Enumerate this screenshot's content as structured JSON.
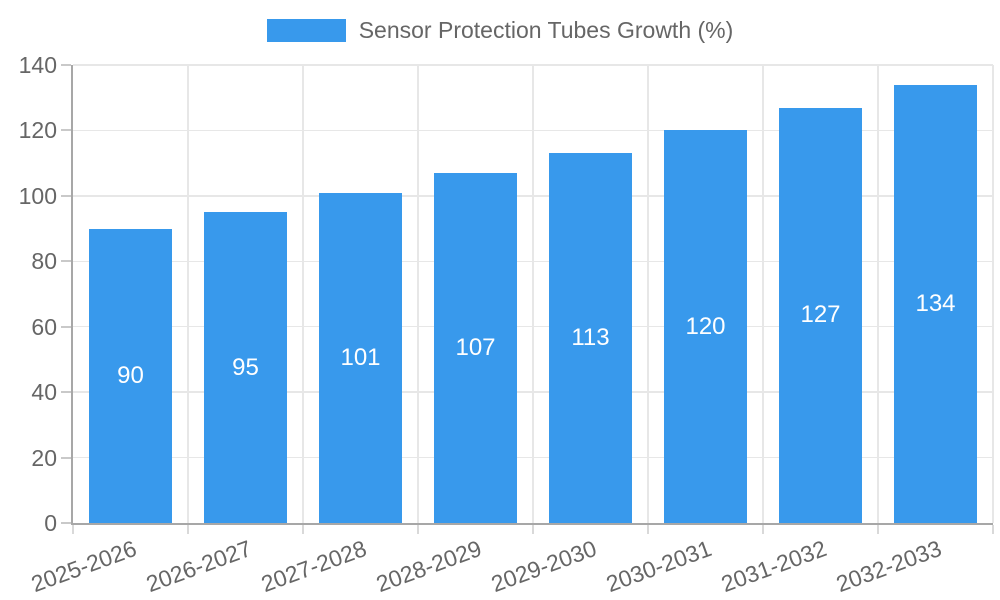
{
  "legend": {
    "label": "Sensor Protection Tubes Growth (%)"
  },
  "chart_data": {
    "type": "bar",
    "title": "Sensor Protection Tubes Growth (%)",
    "categories": [
      "2025-2026",
      "2026-2027",
      "2027-2028",
      "2028-2029",
      "2029-2030",
      "2030-2031",
      "2031-2032",
      "2032-2033"
    ],
    "values": [
      90,
      95,
      101,
      107,
      113,
      120,
      127,
      134
    ],
    "yticks": [
      0,
      20,
      40,
      60,
      80,
      100,
      120,
      140
    ],
    "ylim": [
      0,
      140
    ],
    "xlabel": "",
    "ylabel": "",
    "grid": true,
    "legend_position": "top",
    "data_labels": "inside-center",
    "x_label_rotation_deg": -20,
    "colors": {
      "bar": "#3899ec",
      "data_label": "#ffffff",
      "axis": "#a7a7a7",
      "gridline": "#e7e7e7",
      "tick_text": "#666666"
    }
  }
}
